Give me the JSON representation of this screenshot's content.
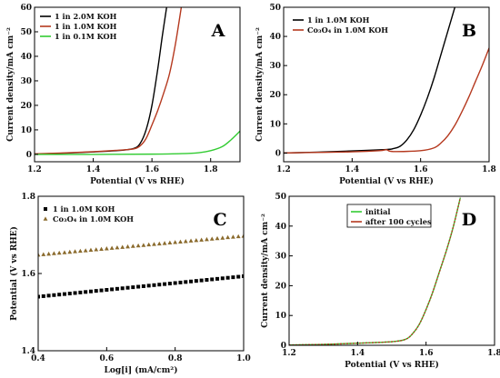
{
  "chart_data": [
    {
      "panel": "A",
      "type": "line",
      "xlabel": "Potential  (V vs RHE)",
      "ylabel": "Current density/mA cm⁻²",
      "xlim": [
        1.2,
        1.9
      ],
      "ylim": [
        -3,
        60
      ],
      "xticks": [
        "1.2",
        "1.4",
        "1.6",
        "1.8"
      ],
      "yticks": [
        "0",
        "10",
        "20",
        "30",
        "40",
        "50",
        "60"
      ],
      "legend": "top-left",
      "series": [
        {
          "name": "1 in 2.0M KOH",
          "color": "#000000",
          "x": [
            1.2,
            1.3,
            1.4,
            1.5,
            1.54,
            1.56,
            1.58,
            1.6,
            1.62,
            1.635,
            1.65
          ],
          "y": [
            0.1,
            0.5,
            1.0,
            1.7,
            2.5,
            4.5,
            10,
            20,
            35,
            48,
            60
          ]
        },
        {
          "name": "1 in 1.0M KOH",
          "color": "#b5391f",
          "x": [
            1.2,
            1.3,
            1.4,
            1.5,
            1.54,
            1.56,
            1.58,
            1.6,
            1.62,
            1.64,
            1.66,
            1.68,
            1.7
          ],
          "y": [
            0.2,
            0.6,
            1.1,
            1.8,
            2.3,
            3.5,
            6.5,
            12,
            18,
            25,
            33,
            45,
            60
          ]
        },
        {
          "name": "1 in 0.1M KOH",
          "color": "#33cc33",
          "x": [
            1.2,
            1.4,
            1.6,
            1.7,
            1.76,
            1.8,
            1.84,
            1.87,
            1.9
          ],
          "y": [
            0,
            0,
            0.1,
            0.3,
            0.7,
            1.5,
            3.2,
            6,
            9.5
          ]
        }
      ]
    },
    {
      "panel": "B",
      "type": "line",
      "xlabel": "Potential  (V vs RHE)",
      "ylabel": "Current density/mA cm⁻²",
      "xlim": [
        1.2,
        1.8
      ],
      "ylim": [
        -3,
        50
      ],
      "xticks": [
        "1.2",
        "1.4",
        "1.6",
        "1.8"
      ],
      "yticks": [
        "0",
        "10",
        "20",
        "30",
        "40",
        "50"
      ],
      "legend": "top-left",
      "series": [
        {
          "name": "1 in 1.0M KOH",
          "color": "#000000",
          "x": [
            1.2,
            1.3,
            1.4,
            1.5,
            1.52,
            1.54,
            1.56,
            1.58,
            1.6,
            1.62,
            1.64,
            1.66,
            1.68,
            1.7
          ],
          "y": [
            0,
            0.3,
            0.7,
            1.2,
            1.5,
            2.3,
            4.5,
            8,
            13,
            19,
            26,
            34,
            42,
            50
          ]
        },
        {
          "name": "Co₃O₄ in 1.0M KOH",
          "color": "#b5391f",
          "x": [
            1.2,
            1.3,
            1.4,
            1.48,
            1.5,
            1.52,
            1.6,
            1.64,
            1.66,
            1.68,
            1.7,
            1.72,
            1.74,
            1.76,
            1.78,
            1.8
          ],
          "y": [
            0,
            0.2,
            0.4,
            0.8,
            1.1,
            0.5,
            0.8,
            1.8,
            3.5,
            6,
            9.5,
            14,
            19,
            24.5,
            30,
            36
          ]
        }
      ]
    },
    {
      "panel": "C",
      "type": "scatter",
      "xlabel": "Log[i]  (mA/cm²)",
      "ylabel": "Potential  (V vs RHE)",
      "xlim": [
        0.4,
        1.0
      ],
      "ylim": [
        1.4,
        1.8
      ],
      "xticks": [
        "0.4",
        "0.6",
        "0.8",
        "1.0"
      ],
      "yticks": [
        "1.4",
        "1.6",
        "1.8"
      ],
      "legend": "top-left",
      "series": [
        {
          "name": "1 in 1.0M KOH",
          "color": "#000000",
          "marker": "square",
          "x_start": 0.4,
          "x_end": 1.0,
          "y_start": 1.54,
          "y_end": 1.593,
          "points": 40
        },
        {
          "name": "Co₃O₄ in 1.0M KOH",
          "color": "#8a6a2c",
          "marker": "triangle",
          "x_start": 0.4,
          "x_end": 1.0,
          "y_start": 1.648,
          "y_end": 1.697,
          "points": 40
        }
      ]
    },
    {
      "panel": "D",
      "type": "line",
      "xlabel": "Potential  (V vs RHE)",
      "ylabel": "Current density/mA cm⁻²",
      "xlim": [
        1.2,
        1.8
      ],
      "ylim": [
        0,
        50
      ],
      "xticks": [
        "1.2",
        "1.4",
        "1.6",
        "1.8"
      ],
      "yticks": [
        "0",
        "10",
        "20",
        "30",
        "40",
        "50"
      ],
      "legend": "top-center",
      "series": [
        {
          "name": "initial",
          "color": "#33cc33",
          "x": [
            1.2,
            1.3,
            1.4,
            1.5,
            1.54,
            1.56,
            1.58,
            1.6,
            1.62,
            1.64,
            1.66,
            1.68,
            1.7
          ],
          "y": [
            0.1,
            0.3,
            0.7,
            1.2,
            2.0,
            3.8,
            7,
            12,
            18,
            25,
            32,
            40,
            49.5
          ]
        },
        {
          "name": "after 100 cycles",
          "color": "#b5391f",
          "x": [
            1.2,
            1.3,
            1.4,
            1.5,
            1.54,
            1.56,
            1.58,
            1.6,
            1.62,
            1.64,
            1.66,
            1.68,
            1.7
          ],
          "y": [
            0.1,
            0.3,
            0.7,
            1.2,
            2.0,
            3.8,
            7,
            12,
            18,
            25,
            32,
            40,
            49.5
          ]
        }
      ]
    }
  ]
}
